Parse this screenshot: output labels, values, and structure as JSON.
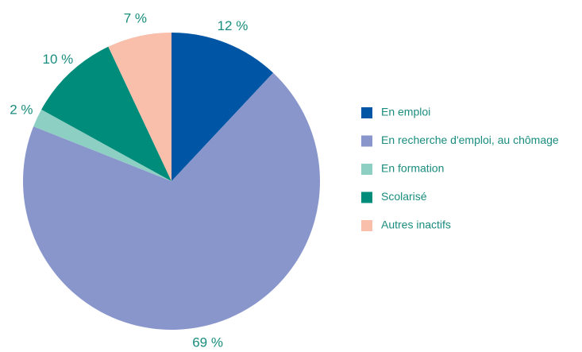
{
  "chart_data": {
    "type": "pie",
    "categories": [
      "En emploi",
      "En recherche d'emploi, au chômage",
      "En formation",
      "Scolarisé",
      "Autres inactifs"
    ],
    "values": [
      12,
      69,
      2,
      10,
      7
    ],
    "value_labels": [
      "12 %",
      "69 %",
      "2 %",
      "10 %",
      "7 %"
    ],
    "colors": [
      "#0055a4",
      "#8896cc",
      "#8ecfc4",
      "#008c7a",
      "#f9bfaa"
    ]
  }
}
